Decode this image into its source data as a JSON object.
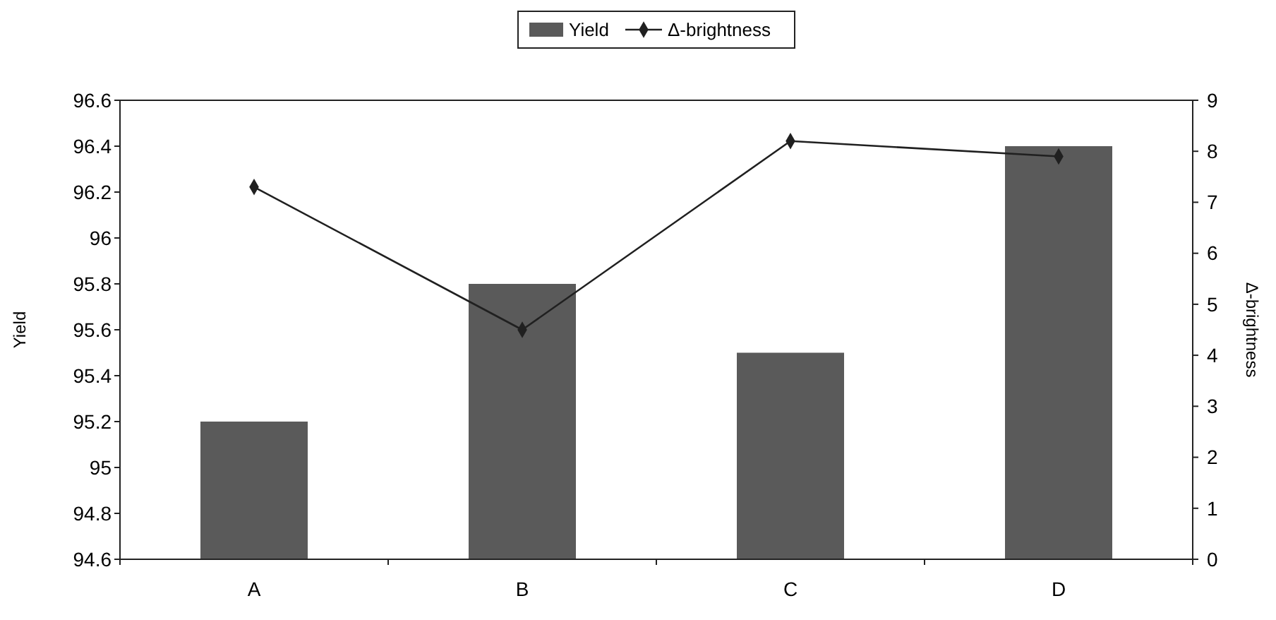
{
  "chart_data": {
    "type": "bar",
    "categories": [
      "A",
      "B",
      "C",
      "D"
    ],
    "ylabel": "Yield",
    "y2label": "Δ-brightness",
    "ylim": [
      94.6,
      96.6
    ],
    "yticks": [
      94.6,
      94.8,
      95,
      95.2,
      95.4,
      95.6,
      95.8,
      96,
      96.2,
      96.4,
      96.6
    ],
    "y2lim": [
      0,
      9
    ],
    "y2ticks": [
      0,
      1,
      2,
      3,
      4,
      5,
      6,
      7,
      8,
      9
    ],
    "legend": "top",
    "grid": false,
    "series": [
      {
        "name": "Yield",
        "color": "#5a5a5a",
        "values": [
          95.2,
          95.8,
          95.5,
          96.4
        ]
      },
      {
        "name": "Δ-brightness",
        "type": "line",
        "axis": "y2",
        "color": "#202020",
        "marker": "diamond",
        "values": [
          7.3,
          4.5,
          8.2,
          7.9
        ]
      }
    ]
  }
}
